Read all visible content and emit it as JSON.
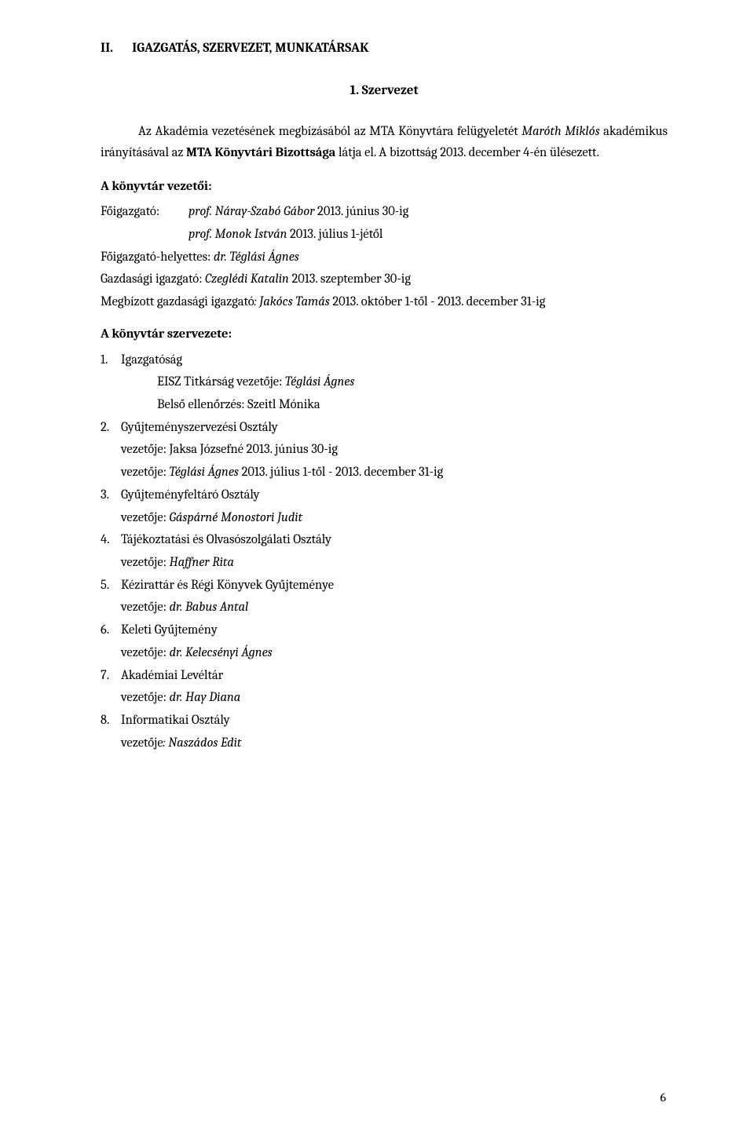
{
  "heading": {
    "roman": "II.",
    "title": "IGAZGATÁS, SZERVEZET, MUNKATÁRSAK"
  },
  "subsection": "1. Szervezet",
  "intro": {
    "pre": "Az Akadémia vezetésének megbízásából az MTA Könyvtára felügyeletét ",
    "name1": "Maróth Miklós",
    "mid1": " akadémikus irányításával az ",
    "name2": "MTA Könyvtári Bizottsága",
    "mid2": " látja el. A bizottság 2013. december 4-én ülésezett."
  },
  "leadersHeading": "A könyvtár vezetői:",
  "leaders": {
    "line1_label": "Főigazgató:",
    "line1_pre": "prof. Náray-Szabó Gábor",
    "line1_post": " 2013. június 30-ig",
    "line2_pre": "prof. Monok István",
    "line2_post": " 2013. július 1-jétől",
    "line3_label": "Főigazgató-helyettes: ",
    "line3_name": "dr. Téglási Ágnes",
    "line4_label": "Gazdasági igazgató: ",
    "line4_name": "Czeglédi Katalin",
    "line4_post": " 2013. szeptember 30-ig",
    "line5_label": "Megbízott gazdasági igazgató",
    "line5_name": ": Jakócs Tamás",
    "line5_post": " 2013. október 1-től - 2013. december 31-ig"
  },
  "orgHeading": "A könyvtár szervezete:",
  "items": [
    {
      "num": "1.",
      "title": "Igazgatóság",
      "subs": [
        {
          "pre": "EISZ Titkárság vezetője: ",
          "it": "Téglási Ágnes"
        },
        {
          "pre": "Belső ellenőrzés: Szeitl Mónika",
          "it": ""
        }
      ]
    },
    {
      "num": "2.",
      "title": "Gyűjteményszervezési Osztály",
      "subv": [
        {
          "pre": "vezetője: Jaksa Józsefné 2013. június 30-ig",
          "it": ""
        },
        {
          "pre": "vezetője: ",
          "it": "Téglási Ágnes",
          "post": " 2013. július 1-től - 2013. december 31-ig"
        }
      ]
    },
    {
      "num": "3.",
      "title": "Gyűjteményfeltáró Osztály",
      "subv": [
        {
          "pre": "vezetője: ",
          "it": "Gáspárné Monostori Judit"
        }
      ]
    },
    {
      "num": "4.",
      "title": "Tájékoztatási és Olvasószolgálati Osztály",
      "subv": [
        {
          "pre": "vezetője: ",
          "it": "Haffner Rita"
        }
      ]
    },
    {
      "num": "5.",
      "title": "Kézirattár és Régi Könyvek Gyűjteménye",
      "subv": [
        {
          "pre": "vezetője: ",
          "it": "dr. Babus Antal"
        }
      ]
    },
    {
      "num": "6.",
      "title": "Keleti Gyűjtemény",
      "subv": [
        {
          "pre": "vezetője: ",
          "it": "dr. Kelecsényi Ágnes"
        }
      ]
    },
    {
      "num": "7.",
      "title": "Akadémiai Levéltár",
      "subv": [
        {
          "pre": "vezetője: ",
          "it": "dr. Hay Diana"
        }
      ]
    },
    {
      "num": "8.",
      "title": "Informatikai Osztály",
      "subv": [
        {
          "pre": "vezetője",
          "it": ": Naszádos Edit"
        }
      ]
    }
  ],
  "pageNumber": "6"
}
